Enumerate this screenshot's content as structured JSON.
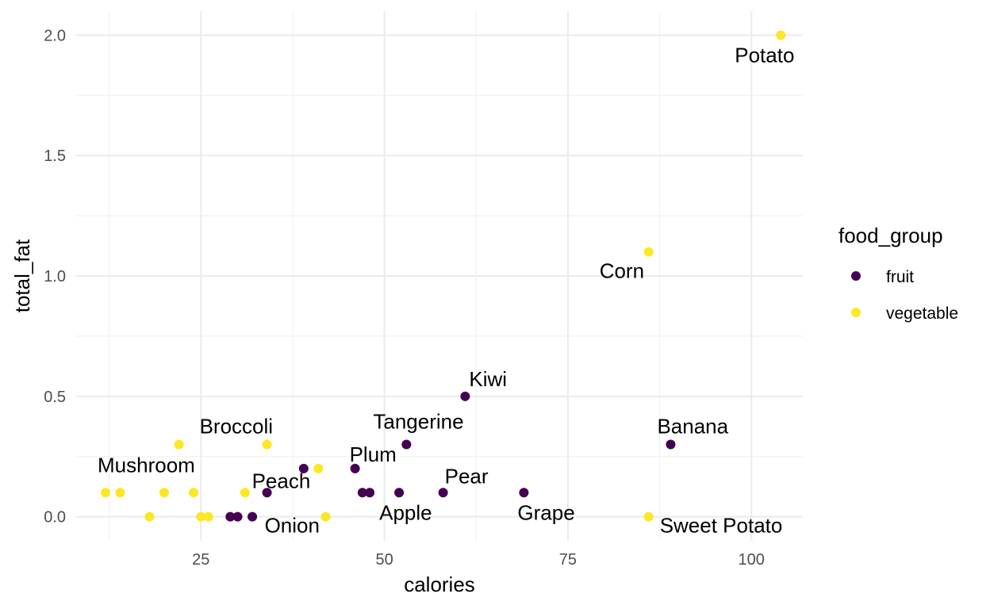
{
  "chart_data": {
    "type": "scatter",
    "xlabel": "calories",
    "ylabel": "total_fat",
    "xlim": [
      8,
      107
    ],
    "ylim": [
      -0.1,
      2.1
    ],
    "x_ticks": [
      25,
      50,
      75,
      100
    ],
    "x_tick_labels": [
      "25",
      "50",
      "75",
      "100"
    ],
    "y_ticks": [
      0,
      0.5,
      1,
      1.5,
      2
    ],
    "y_tick_labels": [
      "0.0",
      "0.5",
      "1.0",
      "1.5",
      "2.0"
    ],
    "grid": true,
    "legend": {
      "title": "food_group",
      "position": "right",
      "entries": [
        {
          "name": "fruit",
          "color": "#440154"
        },
        {
          "name": "vegetable",
          "color": "#FDE725"
        }
      ]
    },
    "series": [
      {
        "name": "fruit",
        "color": "#440154",
        "points": [
          {
            "x": 29,
            "y": 0.0
          },
          {
            "x": 30,
            "y": 0.0
          },
          {
            "x": 32,
            "y": 0.0
          },
          {
            "x": 34,
            "y": 0.1,
            "label": "Peach"
          },
          {
            "x": 39,
            "y": 0.2
          },
          {
            "x": 46,
            "y": 0.2,
            "label": "Plum"
          },
          {
            "x": 47,
            "y": 0.1
          },
          {
            "x": 48,
            "y": 0.1
          },
          {
            "x": 52,
            "y": 0.1,
            "label": "Apple"
          },
          {
            "x": 53,
            "y": 0.3,
            "label": "Tangerine"
          },
          {
            "x": 58,
            "y": 0.1,
            "label": "Pear"
          },
          {
            "x": 61,
            "y": 0.5,
            "label": "Kiwi"
          },
          {
            "x": 69,
            "y": 0.1,
            "label": "Grape"
          },
          {
            "x": 89,
            "y": 0.3,
            "label": "Banana"
          }
        ]
      },
      {
        "name": "vegetable",
        "color": "#FDE725",
        "points": [
          {
            "x": 12,
            "y": 0.1,
            "label": "Mushroom"
          },
          {
            "x": 14,
            "y": 0.1
          },
          {
            "x": 18,
            "y": 0.0
          },
          {
            "x": 20,
            "y": 0.1
          },
          {
            "x": 22,
            "y": 0.3
          },
          {
            "x": 24,
            "y": 0.1
          },
          {
            "x": 25,
            "y": 0.0
          },
          {
            "x": 26,
            "y": 0.0
          },
          {
            "x": 31,
            "y": 0.1
          },
          {
            "x": 34,
            "y": 0.3,
            "label": "Broccoli"
          },
          {
            "x": 41,
            "y": 0.2
          },
          {
            "x": 42,
            "y": 0.0,
            "label": "Onion"
          },
          {
            "x": 86,
            "y": 1.1,
            "label": "Corn"
          },
          {
            "x": 86,
            "y": 0.0,
            "label": "Sweet Potato"
          },
          {
            "x": 104,
            "y": 2.0,
            "label": "Potato"
          }
        ]
      }
    ]
  }
}
